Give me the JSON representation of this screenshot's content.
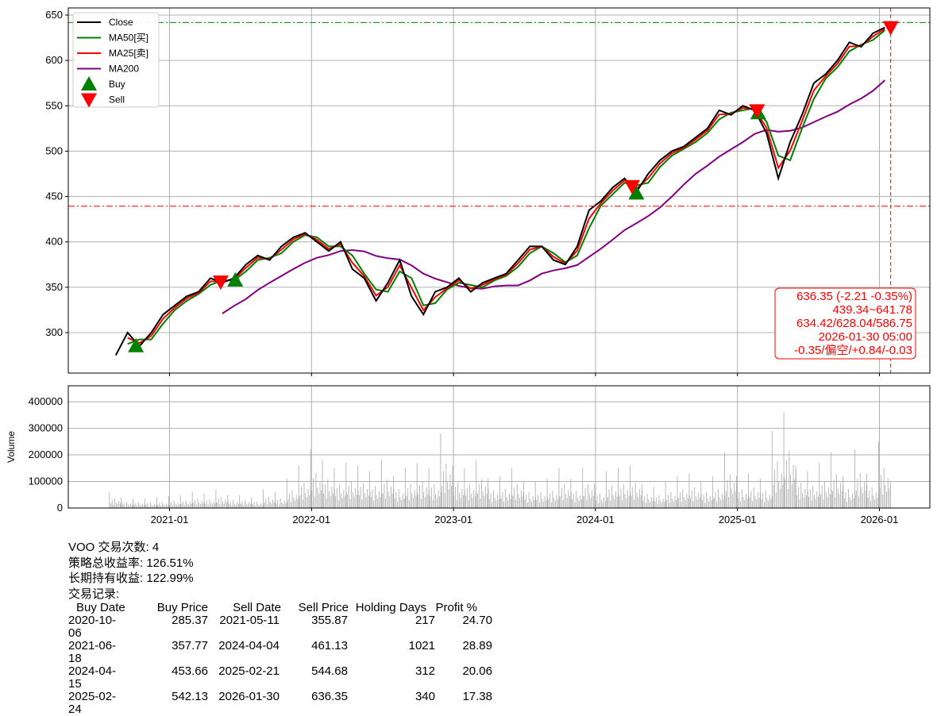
{
  "chart_data": [
    {
      "type": "line",
      "ylim": [
        255,
        655
      ],
      "xlim": [
        "2020-04-25",
        "2026-04-01"
      ],
      "grid": true,
      "legend_position": "top-left",
      "x_ticks": [
        "2021-01",
        "2022-01",
        "2023-01",
        "2024-01",
        "2025-01",
        "2026-01"
      ],
      "y_ticks": [
        300,
        350,
        400,
        450,
        500,
        550,
        600,
        650
      ],
      "legend": [
        "Close",
        "MA50[买]",
        "MA25[卖]",
        "MA200",
        "Buy",
        "Sell"
      ],
      "colors": {
        "close": "#000000",
        "ma50": "#008000",
        "ma25": "#ff0000",
        "ma200": "#800080",
        "buy": "#008000",
        "sell": "#ff0000"
      },
      "close_monthly": {
        "dates": [
          "2020-08",
          "2020-09",
          "2020-10",
          "2020-11",
          "2020-12",
          "2021-01",
          "2021-02",
          "2021-03",
          "2021-04",
          "2021-05",
          "2021-06",
          "2021-07",
          "2021-08",
          "2021-09",
          "2021-10",
          "2021-11",
          "2021-12",
          "2022-01",
          "2022-02",
          "2022-03",
          "2022-04",
          "2022-05",
          "2022-06",
          "2022-07",
          "2022-08",
          "2022-09",
          "2022-10",
          "2022-11",
          "2022-12",
          "2023-01",
          "2023-02",
          "2023-03",
          "2023-04",
          "2023-05",
          "2023-06",
          "2023-07",
          "2023-08",
          "2023-09",
          "2023-10",
          "2023-11",
          "2023-12",
          "2024-01",
          "2024-02",
          "2024-03",
          "2024-04",
          "2024-05",
          "2024-06",
          "2024-07",
          "2024-08",
          "2024-09",
          "2024-10",
          "2024-11",
          "2024-12",
          "2025-01",
          "2025-02",
          "2025-03",
          "2025-04",
          "2025-05",
          "2025-06",
          "2025-07",
          "2025-08",
          "2025-09",
          "2025-10",
          "2025-11",
          "2025-12",
          "2026-01"
        ],
        "values": [
          275,
          300,
          285,
          300,
          320,
          330,
          340,
          345,
          360,
          355,
          360,
          375,
          385,
          380,
          395,
          405,
          410,
          400,
          390,
          400,
          370,
          360,
          335,
          355,
          380,
          340,
          320,
          345,
          350,
          360,
          345,
          355,
          360,
          365,
          380,
          395,
          395,
          380,
          375,
          395,
          435,
          445,
          460,
          470,
          455,
          475,
          490,
          500,
          505,
          515,
          525,
          545,
          540,
          550,
          545,
          520,
          470,
          510,
          540,
          575,
          585,
          600,
          620,
          615,
          630,
          636.35
        ]
      },
      "horizontal_lines": [
        {
          "value": 641.78,
          "color": "#008000"
        },
        {
          "value": 439.34,
          "color": "#ff0000"
        }
      ],
      "vertical_line": "2026-01-30",
      "buys": [
        {
          "date": "2020-10-06",
          "price": 285.37
        },
        {
          "date": "2021-06-18",
          "price": 357.77
        },
        {
          "date": "2024-04-15",
          "price": 453.66
        },
        {
          "date": "2025-02-24",
          "price": 542.13
        }
      ],
      "sells": [
        {
          "date": "2021-05-11",
          "price": 355.87
        },
        {
          "date": "2024-04-04",
          "price": 461.13
        },
        {
          "date": "2025-02-21",
          "price": 544.68
        },
        {
          "date": "2026-01-30",
          "price": 636.35
        }
      ],
      "annotation": [
        "636.35 (-2.21 -0.35%)",
        "439.34~641.78",
        "634.42/628.04/586.75",
        "2026-01-30 05:00",
        "-0.35/偏空/+0.84/-0.03"
      ]
    },
    {
      "type": "bar",
      "ylabel": "Volume",
      "ylim": [
        0,
        460000
      ],
      "y_ticks": [
        0,
        100000,
        200000,
        300000,
        400000
      ],
      "color": "#aaaaaa",
      "monthly_peak_volume": [
        60,
        40,
        35,
        35,
        40,
        45,
        50,
        60,
        55,
        70,
        50,
        50,
        40,
        70,
        60,
        110,
        160,
        220,
        180,
        150,
        170,
        160,
        140,
        180,
        120,
        150,
        170,
        150,
        280,
        160,
        150,
        180,
        110,
        120,
        150,
        100,
        100,
        110,
        150,
        110,
        150,
        90,
        140,
        150,
        160,
        90,
        80,
        100,
        120,
        130,
        100,
        120,
        210,
        120,
        130,
        110,
        290,
        360,
        160,
        140,
        170,
        210,
        120,
        220,
        130,
        250
      ]
    }
  ],
  "summary": {
    "trades": "VOO 交易次数: 4",
    "strategy_return": "策略总收益率: 126.51%",
    "hold_return": "长期持有收益: 122.99%",
    "records_label": "交易记录:",
    "headers": [
      "Buy Date",
      "Buy Price",
      "Sell Date",
      "Sell Price",
      "Holding Days",
      "Profit %"
    ],
    "rows": [
      [
        "2020-10-06",
        "285.37",
        "2021-05-11",
        "355.87",
        "217",
        "24.70"
      ],
      [
        "2021-06-18",
        "357.77",
        "2024-04-04",
        "461.13",
        "1021",
        "28.89"
      ],
      [
        "2024-04-15",
        "453.66",
        "2025-02-21",
        "544.68",
        "312",
        "20.06"
      ],
      [
        "2025-02-24",
        "542.13",
        "2026-01-30",
        "636.35",
        "340",
        "17.38"
      ]
    ]
  }
}
